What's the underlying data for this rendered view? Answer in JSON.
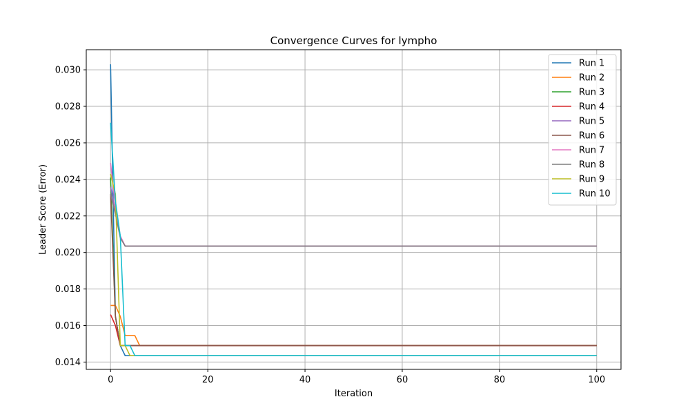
{
  "chart_data": {
    "type": "line",
    "title": "Convergence Curves for lympho",
    "xlabel": "Iteration",
    "ylabel": "Leader Score (Error)",
    "xlim": [
      -5,
      105
    ],
    "ylim": [
      0.0136,
      0.0311
    ],
    "x_ticks": [
      0,
      20,
      40,
      60,
      80,
      100
    ],
    "y_ticks": [
      0.014,
      0.016,
      0.018,
      0.02,
      0.022,
      0.024,
      0.026,
      0.028,
      0.03
    ],
    "y_tick_labels": [
      "0.014",
      "0.016",
      "0.018",
      "0.020",
      "0.022",
      "0.024",
      "0.026",
      "0.028",
      "0.030"
    ],
    "grid": true,
    "legend_position": "top-right",
    "series": [
      {
        "name": "Run 1",
        "color": "#1f77b4",
        "x": [
          0,
          1,
          2,
          3,
          100
        ],
        "y": [
          0.0303,
          0.0165,
          0.0149,
          0.01435,
          0.01435
        ]
      },
      {
        "name": "Run 2",
        "color": "#ff7f0e",
        "x": [
          0,
          1,
          2,
          3,
          5,
          6,
          100
        ],
        "y": [
          0.0171,
          0.0171,
          0.0165,
          0.01545,
          0.01545,
          0.0149,
          0.0149
        ]
      },
      {
        "name": "Run 3",
        "color": "#2ca02c",
        "x": [
          0,
          1,
          2,
          100
        ],
        "y": [
          0.0241,
          0.0165,
          0.0149,
          0.0149
        ]
      },
      {
        "name": "Run 4",
        "color": "#d62728",
        "x": [
          0,
          1,
          2,
          100
        ],
        "y": [
          0.0166,
          0.016,
          0.0149,
          0.0149
        ]
      },
      {
        "name": "Run 5",
        "color": "#9467bd",
        "x": [
          0,
          1,
          2,
          3,
          100
        ],
        "y": [
          0.0236,
          0.0222,
          0.0209,
          0.02035,
          0.02035
        ]
      },
      {
        "name": "Run 6",
        "color": "#8c564b",
        "x": [
          0,
          1,
          2,
          100
        ],
        "y": [
          0.0232,
          0.0165,
          0.0149,
          0.0149
        ]
      },
      {
        "name": "Run 7",
        "color": "#e377c2",
        "x": [
          0,
          1,
          2,
          3,
          100
        ],
        "y": [
          0.0249,
          0.0225,
          0.0209,
          0.02035,
          0.02035
        ]
      },
      {
        "name": "Run 8",
        "color": "#7f7f7f",
        "x": [
          0,
          1,
          2,
          3,
          100
        ],
        "y": [
          0.0232,
          0.0221,
          0.0208,
          0.02035,
          0.02035
        ]
      },
      {
        "name": "Run 9",
        "color": "#bcbd22",
        "x": [
          0,
          1,
          2,
          3,
          4,
          100
        ],
        "y": [
          0.0243,
          0.0232,
          0.0149,
          0.0149,
          0.01435,
          0.01435
        ]
      },
      {
        "name": "Run 10",
        "color": "#17becf",
        "x": [
          0,
          1,
          2,
          3,
          4,
          5,
          100
        ],
        "y": [
          0.0271,
          0.0228,
          0.0209,
          0.0149,
          0.0149,
          0.01435,
          0.01435
        ]
      }
    ]
  }
}
